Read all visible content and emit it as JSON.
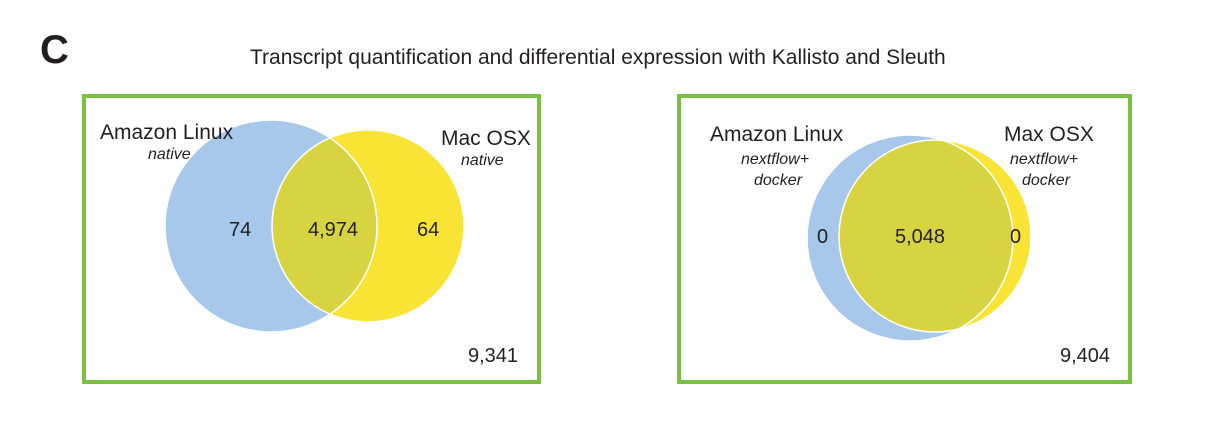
{
  "panel_letter": "C",
  "title": "Transcript quantification and differential expression with Kallisto and Sleuth",
  "colors": {
    "left_set": "#a7c8ea",
    "right_set": "#f9e435",
    "overlap": "#d8d441",
    "frame": "#7ac143"
  },
  "diagrams": [
    {
      "left_set": {
        "name": "Amazon Linux",
        "sublabel": [
          "native"
        ],
        "unique": "74"
      },
      "right_set": {
        "name": "Mac OSX",
        "sublabel": [
          "native"
        ],
        "unique": "64"
      },
      "intersection": "4,974",
      "total": "9,341"
    },
    {
      "left_set": {
        "name": "Amazon Linux",
        "sublabel": [
          "nextflow+",
          "docker"
        ],
        "unique": "0"
      },
      "right_set": {
        "name": "Max OSX",
        "sublabel": [
          "nextflow+",
          "docker"
        ],
        "unique": "0"
      },
      "intersection": "5,048",
      "total": "9,404"
    }
  ]
}
